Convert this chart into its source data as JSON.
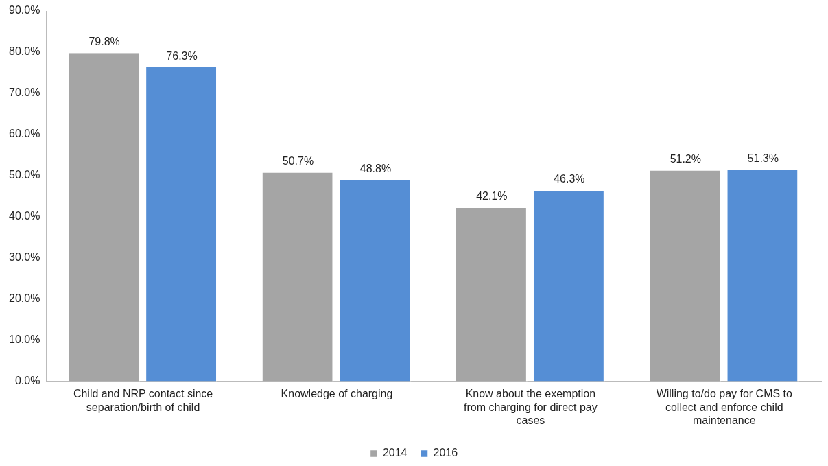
{
  "chart_data": {
    "type": "bar",
    "categories": [
      "Child and NRP contact since separation/birth of child",
      "Knowledge of charging",
      "Know about the exemption from charging for direct pay cases",
      "Willing to/do pay for CMS to collect and enforce child maintenance"
    ],
    "series": [
      {
        "name": "2014",
        "color": "#a5a5a5",
        "values": [
          79.8,
          50.7,
          42.1,
          51.2
        ],
        "value_labels": [
          "79.8%",
          "50.7%",
          "42.1%",
          "51.2%"
        ]
      },
      {
        "name": "2016",
        "color": "#558ed5",
        "values": [
          76.3,
          48.8,
          46.3,
          51.3
        ],
        "value_labels": [
          "76.3%",
          "48.8%",
          "46.3%",
          "51.3%"
        ]
      }
    ],
    "ylim": [
      0,
      90
    ],
    "yticks": [
      {
        "value": 0,
        "label": "0.0%"
      },
      {
        "value": 10,
        "label": "10.0%"
      },
      {
        "value": 20,
        "label": "20.0%"
      },
      {
        "value": 30,
        "label": "30.0%"
      },
      {
        "value": 40,
        "label": "40.0%"
      },
      {
        "value": 50,
        "label": "50.0%"
      },
      {
        "value": 60,
        "label": "60.0%"
      },
      {
        "value": 70,
        "label": "70.0%"
      },
      {
        "value": 80,
        "label": "80.0%"
      },
      {
        "value": 90,
        "label": "90.0%"
      }
    ],
    "grid": false,
    "legend": "bottom"
  }
}
